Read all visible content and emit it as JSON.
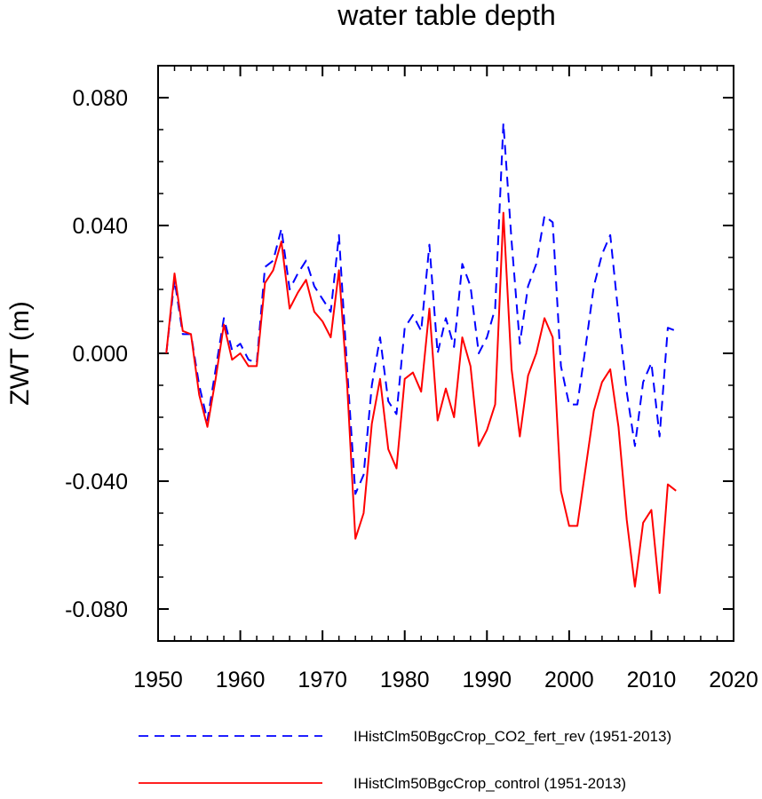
{
  "chart_data": {
    "type": "line",
    "title": "water table depth",
    "xlabel": "",
    "ylabel": "ZWT  (m)",
    "xlim": [
      1950,
      2020
    ],
    "ylim": [
      -0.09,
      0.09
    ],
    "x_ticks": [
      1950,
      1960,
      1970,
      1980,
      1990,
      2000,
      2010,
      2020
    ],
    "x_tick_labels": [
      "1950",
      "1960",
      "1970",
      "1980",
      "1990",
      "2000",
      "2010",
      "2020"
    ],
    "y_ticks": [
      -0.08,
      -0.04,
      0.0,
      0.04,
      0.08
    ],
    "y_tick_labels": [
      "-0.080",
      "-0.040",
      "0.000",
      "0.040",
      "0.080"
    ],
    "x": [
      1951,
      1952,
      1953,
      1954,
      1955,
      1956,
      1957,
      1958,
      1959,
      1960,
      1961,
      1962,
      1963,
      1964,
      1965,
      1966,
      1967,
      1968,
      1969,
      1970,
      1971,
      1972,
      1973,
      1974,
      1975,
      1976,
      1977,
      1978,
      1979,
      1980,
      1981,
      1982,
      1983,
      1984,
      1985,
      1986,
      1987,
      1988,
      1989,
      1990,
      1991,
      1992,
      1993,
      1994,
      1995,
      1996,
      1997,
      1998,
      1999,
      2000,
      2001,
      2002,
      2003,
      2004,
      2005,
      2006,
      2007,
      2008,
      2009,
      2010,
      2011,
      2012,
      2013
    ],
    "series": [
      {
        "name": "IHistClm50BgcCrop_CO2_fert_rev (1951-2013)",
        "color": "#0000ff",
        "dash": "dashed",
        "values": [
          0.0,
          0.023,
          0.006,
          0.006,
          -0.01,
          -0.021,
          -0.005,
          0.011,
          0.001,
          0.003,
          -0.002,
          -0.003,
          0.027,
          0.029,
          0.039,
          0.02,
          0.025,
          0.029,
          0.021,
          0.017,
          0.013,
          0.037,
          -0.005,
          -0.044,
          -0.038,
          -0.01,
          0.005,
          -0.015,
          -0.019,
          0.008,
          0.012,
          0.007,
          0.034,
          0.0,
          0.011,
          0.002,
          0.028,
          0.021,
          0.0,
          0.005,
          0.014,
          0.072,
          0.035,
          0.003,
          0.021,
          0.028,
          0.043,
          0.041,
          -0.004,
          -0.016,
          -0.016,
          0.002,
          0.021,
          0.031,
          0.037,
          0.012,
          -0.012,
          -0.029,
          -0.009,
          -0.003,
          -0.026,
          0.008,
          0.007
        ]
      },
      {
        "name": "IHistClm50BgcCrop_control (1951-2013)",
        "color": "#ff0000",
        "dash": "solid",
        "values": [
          0.0,
          0.025,
          0.007,
          0.006,
          -0.013,
          -0.023,
          -0.008,
          0.009,
          -0.002,
          0.0,
          -0.004,
          -0.004,
          0.022,
          0.026,
          0.035,
          0.014,
          0.019,
          0.023,
          0.013,
          0.01,
          0.005,
          0.026,
          -0.01,
          -0.058,
          -0.05,
          -0.022,
          -0.008,
          -0.03,
          -0.036,
          -0.008,
          -0.006,
          -0.012,
          0.014,
          -0.021,
          -0.011,
          -0.02,
          0.005,
          -0.004,
          -0.029,
          -0.024,
          -0.016,
          0.044,
          -0.005,
          -0.026,
          -0.007,
          0.0,
          0.011,
          0.005,
          -0.043,
          -0.054,
          -0.054,
          -0.036,
          -0.018,
          -0.009,
          -0.005,
          -0.023,
          -0.052,
          -0.073,
          -0.053,
          -0.049,
          -0.075,
          -0.041,
          -0.043
        ]
      }
    ],
    "legend_position": "bottom",
    "grid": false
  }
}
